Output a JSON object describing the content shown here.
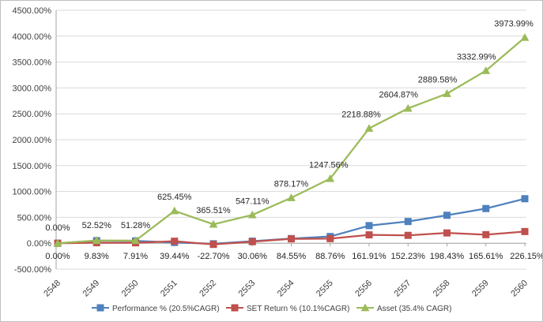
{
  "chart_data": {
    "type": "line",
    "x": [
      "2548",
      "2549",
      "2550",
      "2551",
      "2552",
      "2553",
      "2554",
      "2555",
      "2556",
      "2557",
      "2558",
      "2559",
      "2560"
    ],
    "ylim": [
      -500,
      4500
    ],
    "ytick_step": 500,
    "ytick_labels": [
      "-500.00%",
      "0.00%",
      "500.00%",
      "1000.00%",
      "1500.00%",
      "2000.00%",
      "2500.00%",
      "3000.00%",
      "3500.00%",
      "4000.00%",
      "4500.00%"
    ],
    "grid": "horizontal",
    "legend_position": "bottom",
    "series": [
      {
        "name": "Performance % (20.5%CAGR)",
        "color": "#4f81bd",
        "marker": "square",
        "values": [
          0,
          50,
          45,
          15,
          -10,
          40,
          90,
          130,
          340,
          420,
          540,
          670,
          860
        ]
      },
      {
        "name": "SET Return % (10.1%CAGR)",
        "color": "#c0504d",
        "marker": "square",
        "values": [
          0,
          9.83,
          7.91,
          39.44,
          -22.7,
          30.06,
          84.55,
          88.76,
          161.91,
          152.23,
          198.43,
          165.61,
          226.15
        ],
        "labels": [
          "0.00%",
          "9.83%",
          "7.91%",
          "39.44%",
          "-22.70%",
          "30.06%",
          "84.55%",
          "88.76%",
          "161.91%",
          "152.23%",
          "198.43%",
          "165.61%",
          "226.15%"
        ]
      },
      {
        "name": "Asset (35.4% CAGR)",
        "color": "#9bbb59",
        "marker": "triangle",
        "values": [
          0,
          52.52,
          51.28,
          625.45,
          365.51,
          547.11,
          878.17,
          1247.56,
          2218.88,
          2604.87,
          2889.58,
          3332.99,
          3973.99
        ],
        "labels": [
          "0.00%",
          "52.52%",
          "51.28%",
          "625.45%",
          "365.51%",
          "547.11%",
          "878.17%",
          "1247.56%",
          "2218.88%",
          "2604.87%",
          "2889.58%",
          "3332.99%",
          "3973.99%"
        ]
      }
    ]
  }
}
